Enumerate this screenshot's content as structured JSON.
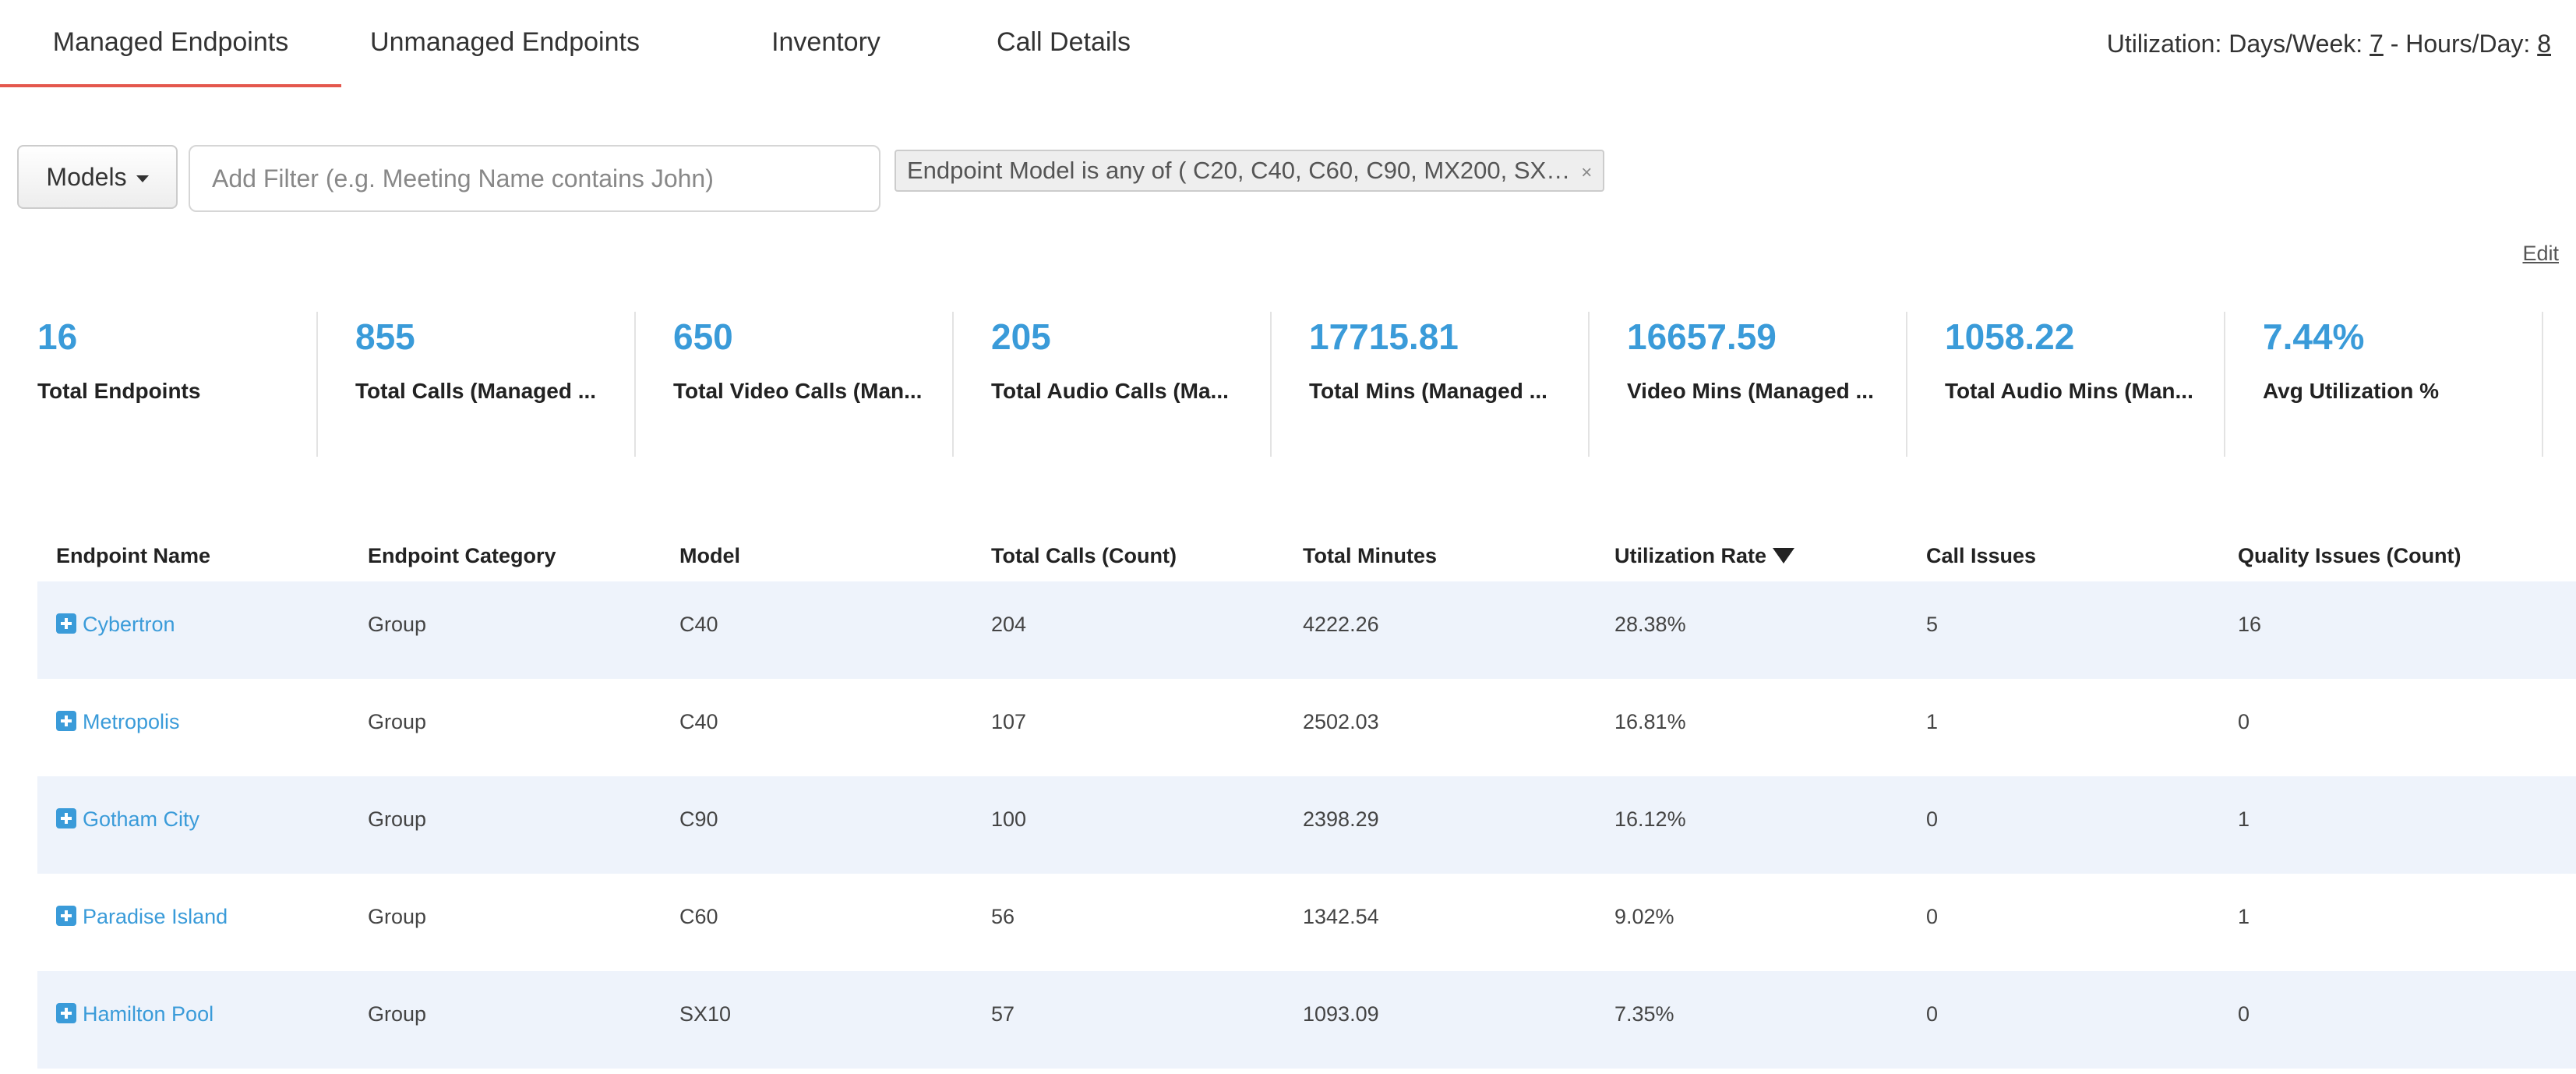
{
  "tabs": [
    {
      "label": "Managed Endpoints"
    },
    {
      "label": "Unmanaged Endpoints"
    },
    {
      "label": "Inventory"
    },
    {
      "label": "Call Details"
    }
  ],
  "utilization": {
    "days_label": "Utilization: Days/Week:",
    "days_value": "7",
    "separator": "- Hours/Day:",
    "hours_value": "8"
  },
  "filter": {
    "models_label": "Models",
    "placeholder": "Add Filter (e.g. Meeting Name contains John)",
    "chip_text": "Endpoint Model is any of ( C20, C40, C60, C90, MX200, SX…",
    "chip_close": "×"
  },
  "edit_label": "Edit",
  "kpis": [
    {
      "value": "16",
      "label": "Total Endpoints"
    },
    {
      "value": "855",
      "label": "Total Calls (Managed ..."
    },
    {
      "value": "650",
      "label": "Total Video Calls (Man..."
    },
    {
      "value": "205",
      "label": "Total Audio Calls (Ma..."
    },
    {
      "value": "17715.81",
      "label": "Total Mins (Managed ..."
    },
    {
      "value": "16657.59",
      "label": "Video Mins (Managed ..."
    },
    {
      "value": "1058.22",
      "label": "Total Audio Mins (Man..."
    },
    {
      "value": "7.44%",
      "label": "Avg Utilization %"
    }
  ],
  "table": {
    "columns": [
      "Endpoint Name",
      "Endpoint Category",
      "Model",
      "Total Calls (Count)",
      "Total Minutes",
      "Utilization Rate",
      "Call Issues",
      "Quality Issues (Count)"
    ],
    "rows": [
      [
        "Cybertron",
        "Group",
        "C40",
        "204",
        "4222.26",
        "28.38%",
        "5",
        "16"
      ],
      [
        "Metropolis",
        "Group",
        "C40",
        "107",
        "2502.03",
        "16.81%",
        "1",
        "0"
      ],
      [
        "Gotham City",
        "Group",
        "C90",
        "100",
        "2398.29",
        "16.12%",
        "0",
        "1"
      ],
      [
        "Paradise Island",
        "Group",
        "C60",
        "56",
        "1342.54",
        "9.02%",
        "0",
        "1"
      ],
      [
        "Hamilton Pool",
        "Group",
        "SX10",
        "57",
        "1093.09",
        "7.35%",
        "0",
        "0"
      ]
    ]
  },
  "icons": {
    "expand_row": "plus-square-icon",
    "sort": "triangle-down-icon",
    "dropdown": "caret-down-icon"
  },
  "colors": {
    "accent_blue": "#3a9bd9",
    "active_tab_underline": "#e4574d",
    "row_shade": "#eef3fb"
  }
}
